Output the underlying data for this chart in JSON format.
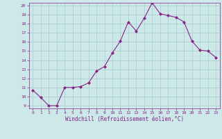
{
  "x": [
    0,
    1,
    2,
    3,
    4,
    5,
    6,
    7,
    8,
    9,
    10,
    11,
    12,
    13,
    14,
    15,
    16,
    17,
    18,
    19,
    20,
    21,
    22,
    23
  ],
  "y": [
    10.7,
    9.9,
    9.0,
    9.0,
    11.0,
    11.0,
    11.1,
    11.5,
    12.8,
    13.3,
    14.8,
    16.1,
    18.2,
    17.2,
    18.6,
    20.3,
    19.1,
    18.9,
    18.7,
    18.2,
    16.1,
    15.1,
    15.0,
    14.3
  ],
  "line_color": "#882288",
  "marker": "D",
  "marker_size": 2.0,
  "bg_color": "#cce8e8",
  "grid_color": "#aacccc",
  "xlabel": "Windchill (Refroidissement éolien,°C)",
  "xlabel_color": "#882288",
  "tick_color": "#882288",
  "ylim": [
    9,
    20
  ],
  "xlim": [
    -0.5,
    23.5
  ],
  "yticks": [
    9,
    10,
    11,
    12,
    13,
    14,
    15,
    16,
    17,
    18,
    19,
    20
  ],
  "xticks": [
    0,
    1,
    2,
    3,
    4,
    5,
    6,
    7,
    8,
    9,
    10,
    11,
    12,
    13,
    14,
    15,
    16,
    17,
    18,
    19,
    20,
    21,
    22,
    23
  ]
}
